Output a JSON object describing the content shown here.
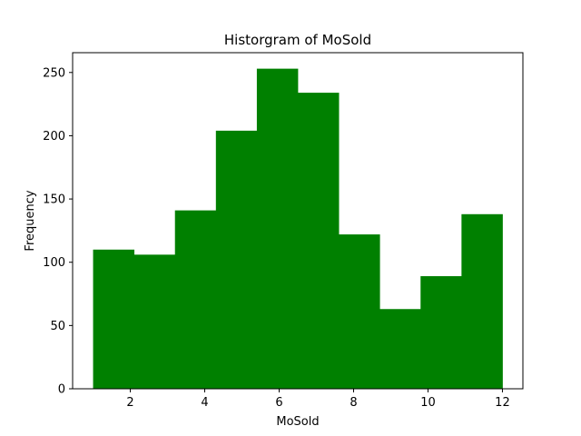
{
  "chart_data": {
    "type": "bar",
    "title": "Historgram of MoSold",
    "xlabel": "MoSold",
    "ylabel": "Frequency",
    "bin_edges": [
      1.0,
      2.1,
      3.2,
      4.3,
      5.4,
      6.5,
      7.6,
      8.7,
      9.8,
      10.9,
      12.0
    ],
    "values": [
      110,
      106,
      141,
      204,
      253,
      234,
      122,
      63,
      89,
      138
    ],
    "xlim": [
      0.45,
      12.55
    ],
    "ylim": [
      0,
      265.65
    ],
    "xticks": [
      2,
      4,
      6,
      8,
      10,
      12
    ],
    "xtick_labels": [
      "2",
      "4",
      "6",
      "8",
      "10",
      "12"
    ],
    "yticks": [
      0,
      50,
      100,
      150,
      200,
      250
    ],
    "ytick_labels": [
      "0",
      "50",
      "100",
      "150",
      "200",
      "250"
    ],
    "bar_color": "#008000",
    "grid": false,
    "legend": "none"
  }
}
